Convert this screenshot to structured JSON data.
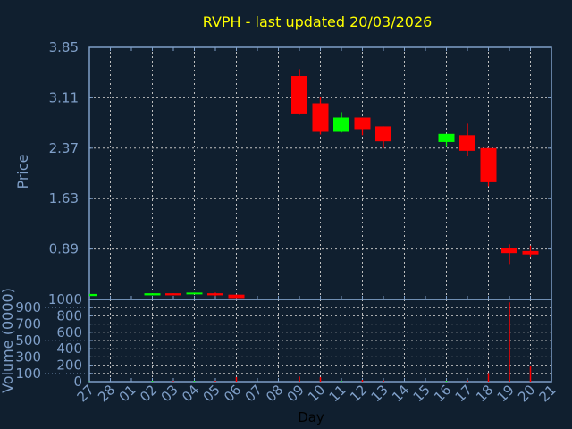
{
  "chart_data": [
    {
      "type": "candlestick",
      "title": "RVPH - last updated 20/03/2026",
      "ylabel": "Price",
      "ylim": [
        0.15,
        3.85
      ],
      "yticks": [
        "3.85",
        "3.11",
        "2.37",
        "1.63",
        "0.89"
      ],
      "grid": true,
      "up_color": "#00ff00",
      "down_color": "#ff0000",
      "candles": [
        {
          "day": "27",
          "open": 0.2,
          "high": 0.23,
          "low": 0.2,
          "close": 0.23
        },
        {
          "day": "02",
          "open": 0.21,
          "high": 0.24,
          "low": 0.21,
          "close": 0.24
        },
        {
          "day": "03",
          "open": 0.24,
          "high": 0.24,
          "low": 0.21,
          "close": 0.21
        },
        {
          "day": "04",
          "open": 0.23,
          "high": 0.25,
          "low": 0.23,
          "close": 0.25
        },
        {
          "day": "05",
          "open": 0.24,
          "high": 0.25,
          "low": 0.2,
          "close": 0.21
        },
        {
          "day": "06",
          "open": 0.22,
          "high": 0.22,
          "low": 0.17,
          "close": 0.17
        },
        {
          "day": "09",
          "open": 3.43,
          "high": 3.53,
          "low": 2.86,
          "close": 2.88
        },
        {
          "day": "10",
          "open": 3.03,
          "high": 3.12,
          "low": 2.57,
          "close": 2.61
        },
        {
          "day": "11",
          "open": 2.61,
          "high": 2.9,
          "low": 2.6,
          "close": 2.82
        },
        {
          "day": "12",
          "open": 2.82,
          "high": 2.82,
          "low": 2.56,
          "close": 2.65
        },
        {
          "day": "13",
          "open": 2.69,
          "high": 2.69,
          "low": 2.37,
          "close": 2.47
        },
        {
          "day": "16",
          "open": 2.46,
          "high": 2.58,
          "low": 2.4,
          "close": 2.58
        },
        {
          "day": "17",
          "open": 2.56,
          "high": 2.73,
          "low": 2.26,
          "close": 2.33
        },
        {
          "day": "18",
          "open": 2.37,
          "high": 2.37,
          "low": 1.81,
          "close": 1.87
        },
        {
          "day": "19",
          "open": 0.91,
          "high": 0.96,
          "low": 0.67,
          "close": 0.83
        },
        {
          "day": "20",
          "open": 0.86,
          "high": 0.94,
          "low": 0.78,
          "close": 0.81
        }
      ]
    },
    {
      "type": "bar",
      "ylabel": "Volume (0000)",
      "xlabel": "Day",
      "ylim": [
        0,
        1000
      ],
      "yticks": [
        "0",
        "100",
        "200",
        "300",
        "400",
        "500",
        "600",
        "700",
        "800",
        "900",
        "1000"
      ],
      "grid": true,
      "categories": [
        "27",
        "28",
        "01",
        "02",
        "03",
        "04",
        "05",
        "06",
        "07",
        "08",
        "09",
        "10",
        "11",
        "12",
        "13",
        "14",
        "15",
        "16",
        "17",
        "18",
        "19",
        "20",
        "21"
      ],
      "values": [
        {
          "day": "27",
          "volume": 3,
          "color": "#00ff00"
        },
        {
          "day": "02",
          "volume": 10,
          "color": "#00ff00"
        },
        {
          "day": "03",
          "volume": 8,
          "color": "#ff0000"
        },
        {
          "day": "04",
          "volume": 10,
          "color": "#00ff00"
        },
        {
          "day": "05",
          "volume": 10,
          "color": "#ff0000"
        },
        {
          "day": "06",
          "volume": 54,
          "color": "#ff0000"
        },
        {
          "day": "09",
          "volume": 61,
          "color": "#ff0000"
        },
        {
          "day": "10",
          "volume": 54,
          "color": "#ff0000"
        },
        {
          "day": "11",
          "volume": 10,
          "color": "#00ff00"
        },
        {
          "day": "12",
          "volume": 22,
          "color": "#ff0000"
        },
        {
          "day": "13",
          "volume": 15,
          "color": "#ff0000"
        },
        {
          "day": "16",
          "volume": 10,
          "color": "#00ff00"
        },
        {
          "day": "17",
          "volume": 15,
          "color": "#ff0000"
        },
        {
          "day": "18",
          "volume": 104,
          "color": "#ff0000"
        },
        {
          "day": "19",
          "volume": 964,
          "color": "#ff0000"
        },
        {
          "day": "20",
          "volume": 195,
          "color": "#ff0000"
        }
      ]
    }
  ],
  "colors": {
    "background": "#101f2f",
    "title": "#ffff00",
    "axis": "#7f9fc8",
    "grid": "#c0c0c0",
    "xlabel": "#000000"
  }
}
